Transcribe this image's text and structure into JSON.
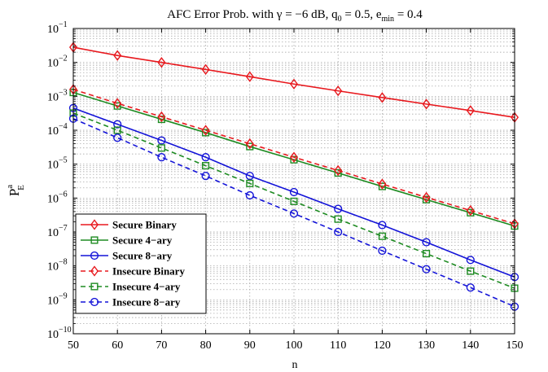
{
  "chart_data": {
    "type": "line",
    "title": "AFC Error Prob. with γ = −6 dB, q₀ = 0.5, eₘᵢₙ = 0.4",
    "title_parts": {
      "prefix": "AFC Error Prob. with ",
      "gamma": "γ",
      "gamma_rest": " = −6 dB, q",
      "q_sub": "0",
      "q_rest": " = 0.5, e",
      "e_sub": "min",
      "e_rest": " = 0.4"
    },
    "xlabel": "n",
    "ylabel": {
      "base": "P",
      "sup": "a",
      "sub": "E"
    },
    "x": [
      50,
      60,
      70,
      80,
      90,
      100,
      110,
      120,
      130,
      140,
      150
    ],
    "xlim": [
      50,
      150
    ],
    "ylim_exp": [
      -10,
      -1
    ],
    "y_scale": "log",
    "grid": true,
    "legend_position": "bottom-left",
    "x_ticks": [
      "50",
      "60",
      "70",
      "80",
      "90",
      "100",
      "110",
      "120",
      "130",
      "140",
      "150"
    ],
    "y_ticks": [
      {
        "exp": -10,
        "label": "10",
        "sup": "−10"
      },
      {
        "exp": -9,
        "label": "10",
        "sup": "−9"
      },
      {
        "exp": -8,
        "label": "10",
        "sup": "−8"
      },
      {
        "exp": -7,
        "label": "10",
        "sup": "−7"
      },
      {
        "exp": -6,
        "label": "10",
        "sup": "−6"
      },
      {
        "exp": -5,
        "label": "10",
        "sup": "−5"
      },
      {
        "exp": -4,
        "label": "10",
        "sup": "−4"
      },
      {
        "exp": -3,
        "label": "10",
        "sup": "−3"
      },
      {
        "exp": -2,
        "label": "10",
        "sup": "−2"
      },
      {
        "exp": -1,
        "label": "10",
        "sup": "−1"
      }
    ],
    "series": [
      {
        "name": "Secure Binary",
        "color": "#e8191e",
        "marker": "diamond",
        "dash": false,
        "values": [
          0.028,
          0.016,
          0.01,
          0.0062,
          0.0038,
          0.0023,
          0.00145,
          0.00092,
          0.00059,
          0.00038,
          0.00024
        ]
      },
      {
        "name": "Secure 4−ary",
        "color": "#1e8b22",
        "marker": "square",
        "dash": false,
        "values": [
          0.0013,
          0.00052,
          0.00021,
          8.5e-05,
          3.3e-05,
          1.35e-05,
          5.5e-06,
          2.2e-06,
          9e-07,
          3.7e-07,
          1.5e-07
        ]
      },
      {
        "name": "Secure 8−ary",
        "color": "#1414d8",
        "marker": "circle",
        "dash": false,
        "values": [
          0.00045,
          0.00015,
          5e-05,
          1.6e-05,
          4.5e-06,
          1.5e-06,
          4.8e-07,
          1.6e-07,
          5e-08,
          1.5e-08,
          4.7e-09
        ]
      },
      {
        "name": "Insecure Binary",
        "color": "#e8191e",
        "marker": "diamond",
        "dash": true,
        "values": [
          0.0016,
          0.00062,
          0.00025,
          0.0001,
          4e-05,
          1.6e-05,
          6.5e-06,
          2.6e-06,
          1.05e-06,
          4.3e-07,
          1.75e-07
        ]
      },
      {
        "name": "Insecure 4−ary",
        "color": "#1e8b22",
        "marker": "square",
        "dash": true,
        "values": [
          0.00032,
          0.0001,
          3e-05,
          9e-06,
          2.7e-06,
          8e-07,
          2.4e-07,
          7.5e-08,
          2.3e-08,
          7e-09,
          2.2e-09
        ]
      },
      {
        "name": "Insecure 8−ary",
        "color": "#1414d8",
        "marker": "circle",
        "dash": true,
        "values": [
          0.00022,
          6e-05,
          1.6e-05,
          4.5e-06,
          1.2e-06,
          3.5e-07,
          1e-07,
          2.8e-08,
          8e-09,
          2.3e-09,
          6.3e-10
        ]
      }
    ]
  }
}
